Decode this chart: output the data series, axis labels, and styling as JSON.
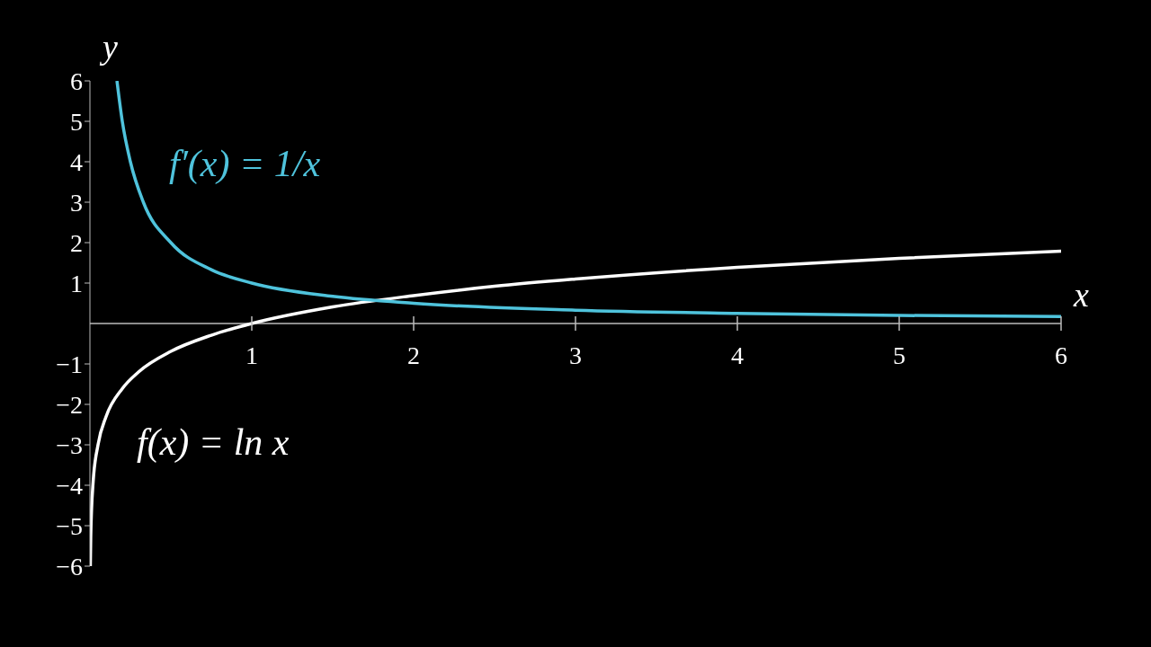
{
  "chart_data": {
    "type": "line",
    "xlabel": "x",
    "ylabel": "y",
    "xlim": [
      0,
      6
    ],
    "xticks": [
      1,
      2,
      3,
      4,
      5,
      6
    ],
    "ylim": [
      -6,
      6
    ],
    "yticks": [
      {
        "value": -6,
        "label": "−6"
      },
      {
        "value": -5,
        "label": "−5"
      },
      {
        "value": -4,
        "label": "−4"
      },
      {
        "value": -3,
        "label": "−3"
      },
      {
        "value": -2,
        "label": "−2"
      },
      {
        "value": -1,
        "label": "−1"
      },
      1,
      2,
      3,
      4,
      5,
      6
    ],
    "grid": false,
    "legend": false,
    "marker": "none",
    "line_style": "solid",
    "series": [
      {
        "name": "f(x) = ln x",
        "color": "#ffffff",
        "x": [
          0.0025,
          0.005,
          0.01,
          0.02,
          0.05,
          0.1,
          0.2,
          0.3,
          0.5,
          0.75,
          1,
          1.5,
          2,
          2.5,
          3,
          4,
          5,
          6
        ],
        "values": [
          -6,
          -5.3,
          -4.61,
          -3.91,
          -3,
          -2.3,
          -1.61,
          -1.2,
          -0.69,
          -0.29,
          0,
          0.41,
          0.69,
          0.92,
          1.1,
          1.39,
          1.61,
          1.79
        ]
      },
      {
        "name": "f′(x) = 1/x",
        "color": "#4fc3dc",
        "x": [
          0.167,
          0.2,
          0.25,
          0.33,
          0.5,
          0.75,
          1,
          1.5,
          2,
          3,
          4,
          5,
          6
        ],
        "values": [
          6,
          5,
          4,
          3,
          2,
          1.33,
          1,
          0.67,
          0.5,
          0.33,
          0.25,
          0.2,
          0.17
        ]
      }
    ]
  }
}
